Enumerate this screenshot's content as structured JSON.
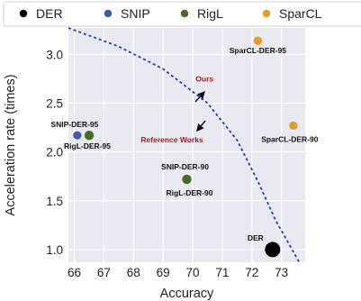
{
  "chart_data": {
    "type": "scatter",
    "xlabel": "Accuracy",
    "ylabel": "Acceleration rate (times)",
    "xlim": [
      65.8,
      73.8
    ],
    "ylim": [
      0.87,
      3.27
    ],
    "xticks": [
      66,
      67,
      68,
      69,
      70,
      71,
      72,
      73
    ],
    "yticks": [
      1.0,
      1.5,
      2.0,
      2.5,
      3.0
    ],
    "grid": true,
    "legend_position": "top",
    "series": [
      {
        "name": "DER",
        "color": "#000000",
        "points": [
          {
            "x": 72.7,
            "y": 1.0,
            "label": "DER",
            "size": "large"
          }
        ]
      },
      {
        "name": "SNIP",
        "color": "#3a5ca8",
        "points": [
          {
            "x": 66.1,
            "y": 2.17,
            "label": "SNIP-DER-95"
          },
          {
            "x": 69.8,
            "y": 1.72,
            "label": "SNIP-DER-90"
          }
        ]
      },
      {
        "name": "RigL",
        "color": "#4a6a2a",
        "points": [
          {
            "x": 66.5,
            "y": 2.17,
            "label": "RigL-DER-95"
          },
          {
            "x": 69.8,
            "y": 1.72,
            "label": "RigL-DER-90"
          }
        ]
      },
      {
        "name": "SparCL",
        "color": "#e59a2a",
        "points": [
          {
            "x": 72.2,
            "y": 3.14,
            "label": "SparCL-DER-95"
          },
          {
            "x": 73.4,
            "y": 2.27,
            "label": "SparCL-DER-90"
          }
        ]
      }
    ],
    "frontier": {
      "color": "#1a3ad0",
      "style": "dashed",
      "points": [
        [
          65.8,
          3.27
        ],
        [
          67.5,
          3.08
        ],
        [
          69.0,
          2.85
        ],
        [
          70.5,
          2.5
        ],
        [
          71.5,
          2.12
        ],
        [
          72.2,
          1.7
        ],
        [
          72.8,
          1.3
        ],
        [
          73.6,
          0.87
        ]
      ]
    },
    "annotations": [
      {
        "text": "Ours",
        "x": 70.4,
        "y": 2.72
      },
      {
        "text": "Reference Works",
        "x": 69.3,
        "y": 2.1
      }
    ]
  }
}
